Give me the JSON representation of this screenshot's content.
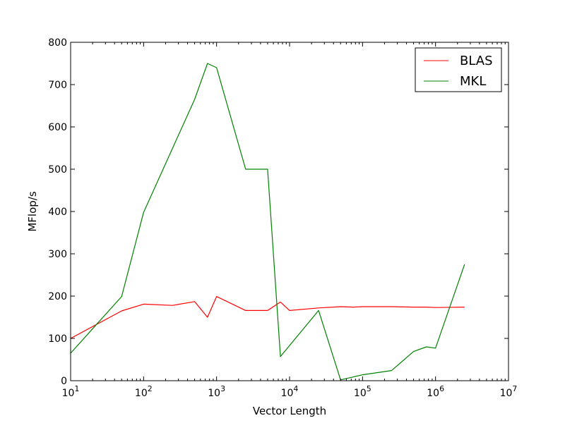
{
  "chart_data": {
    "type": "line",
    "title": "",
    "xlabel": "Vector Length",
    "ylabel": "MFlop/s",
    "xscale": "log",
    "xlim": [
      10,
      10000000
    ],
    "ylim": [
      0,
      800
    ],
    "grid": false,
    "legend_position": "top-right",
    "x_ticks": [
      {
        "value": 10,
        "base": "10",
        "exp": "1"
      },
      {
        "value": 100,
        "base": "10",
        "exp": "2"
      },
      {
        "value": 1000,
        "base": "10",
        "exp": "3"
      },
      {
        "value": 10000,
        "base": "10",
        "exp": "4"
      },
      {
        "value": 100000,
        "base": "10",
        "exp": "5"
      },
      {
        "value": 1000000,
        "base": "10",
        "exp": "6"
      },
      {
        "value": 10000000,
        "base": "10",
        "exp": "7"
      }
    ],
    "y_ticks": [
      0,
      100,
      200,
      300,
      400,
      500,
      600,
      700,
      800
    ],
    "series": [
      {
        "name": "BLAS",
        "color": "#ff0000",
        "points": [
          [
            10,
            100
          ],
          [
            50,
            165
          ],
          [
            100,
            181
          ],
          [
            250,
            178
          ],
          [
            500,
            187
          ],
          [
            750,
            150
          ],
          [
            1000,
            199
          ],
          [
            2500,
            166
          ],
          [
            5000,
            166
          ],
          [
            7500,
            186
          ],
          [
            10000,
            166
          ],
          [
            25000,
            172
          ],
          [
            50000,
            175
          ],
          [
            75000,
            174
          ],
          [
            100000,
            175
          ],
          [
            250000,
            175
          ],
          [
            500000,
            174
          ],
          [
            750000,
            174
          ],
          [
            1000000,
            173
          ],
          [
            2500000,
            174
          ]
        ]
      },
      {
        "name": "MKL",
        "color": "#008000",
        "points": [
          [
            10,
            65
          ],
          [
            50,
            199
          ],
          [
            100,
            398
          ],
          [
            250,
            550
          ],
          [
            500,
            665
          ],
          [
            750,
            750
          ],
          [
            1000,
            740
          ],
          [
            2500,
            500
          ],
          [
            5000,
            500
          ],
          [
            7500,
            57
          ],
          [
            25000,
            166
          ],
          [
            50000,
            2
          ],
          [
            100000,
            14
          ],
          [
            250000,
            24
          ],
          [
            500000,
            69
          ],
          [
            750000,
            80
          ],
          [
            1000000,
            77
          ],
          [
            2500000,
            275
          ]
        ]
      }
    ]
  }
}
